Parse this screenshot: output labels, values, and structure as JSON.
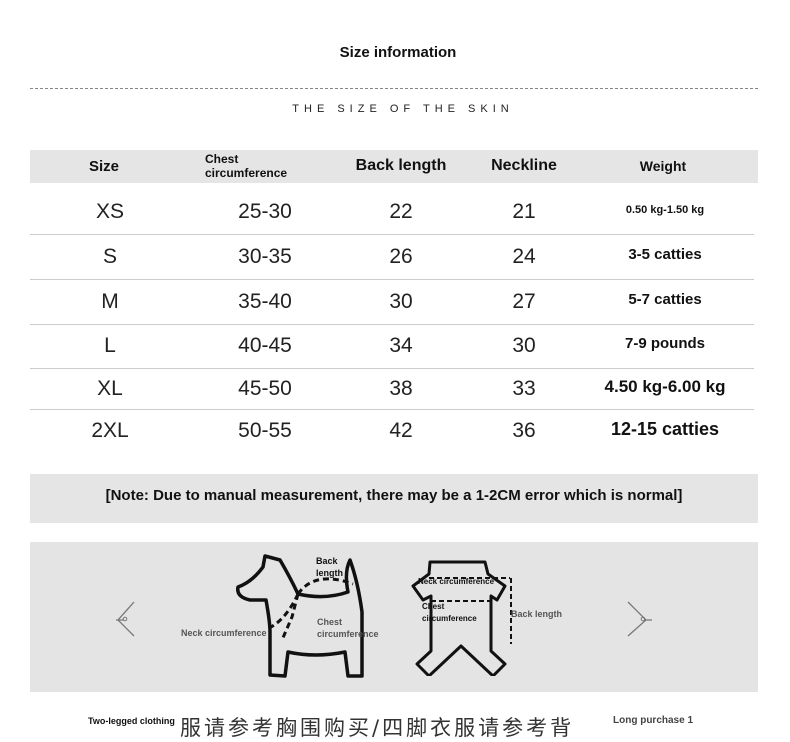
{
  "header": {
    "title": "Size information",
    "subtitle": "THE SIZE OF THE SKIN"
  },
  "table": {
    "columns": [
      "Size",
      "Chest circumference",
      "Back length",
      "Neckline",
      "Weight"
    ],
    "rows": [
      [
        "XS",
        "25-30",
        "22",
        "21",
        "0.50 kg-1.50 kg"
      ],
      [
        "S",
        "30-35",
        "26",
        "24",
        "3-5 catties"
      ],
      [
        "M",
        "35-40",
        "30",
        "27",
        "5-7 catties"
      ],
      [
        "L",
        "40-45",
        "34",
        "30",
        "7-9 pounds"
      ],
      [
        "XL",
        "45-50",
        "38",
        "33",
        "4.50 kg-6.00 kg"
      ],
      [
        "2XL",
        "50-55",
        "42",
        "36",
        "12-15 catties"
      ]
    ]
  },
  "note": "[Note: Due to manual measurement, there may be a 1-2CM error which is normal]",
  "diagram": {
    "dog": {
      "back_length": "Back length",
      "neck": "Neck circumference",
      "chest": "Chest circumference"
    },
    "garment": {
      "neck": "Neck circumference",
      "chest": "Chest circumference",
      "back_length": "Back length"
    }
  },
  "footer": {
    "left": "Two-legged clothing",
    "chinese": "服请参考胸围购买/四脚衣服请参考背",
    "right": "Long purchase 1"
  }
}
